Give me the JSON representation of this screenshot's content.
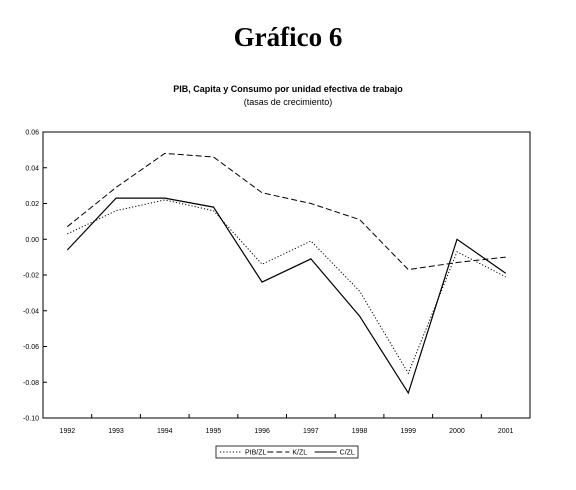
{
  "page": {
    "heading": "Gráfico 6"
  },
  "chart_data": {
    "type": "line",
    "title": "PIB, Capita y Consumo por unidad efectiva de trabajo",
    "subtitle": "(tasas de crecimiento)",
    "xlabel": "",
    "ylabel": "",
    "x": [
      1992,
      1993,
      1994,
      1995,
      1996,
      1997,
      1998,
      1999,
      2000,
      2001
    ],
    "ylim": [
      -0.1,
      0.06
    ],
    "yticks": [
      "0.06",
      "0.04",
      "0.02",
      "0.00",
      "-0.02",
      "-0.04",
      "-0.06",
      "-0.08",
      "-0.10"
    ],
    "grid": false,
    "legend_position": "bottom-center",
    "series": [
      {
        "name": "PIB/ZL",
        "style": "dotted",
        "color": "#000000",
        "values": [
          0.003,
          0.016,
          0.022,
          0.016,
          -0.014,
          -0.001,
          -0.029,
          -0.075,
          -0.007,
          -0.021
        ]
      },
      {
        "name": "K/ZL",
        "style": "dashed",
        "color": "#000000",
        "values": [
          0.007,
          0.029,
          0.048,
          0.046,
          0.026,
          0.02,
          0.011,
          -0.017,
          -0.013,
          -0.01
        ]
      },
      {
        "name": "C/ZL",
        "style": "solid",
        "color": "#000000",
        "values": [
          -0.006,
          0.023,
          0.023,
          0.018,
          -0.024,
          -0.011,
          -0.043,
          -0.086,
          0.0,
          -0.019
        ]
      }
    ]
  }
}
